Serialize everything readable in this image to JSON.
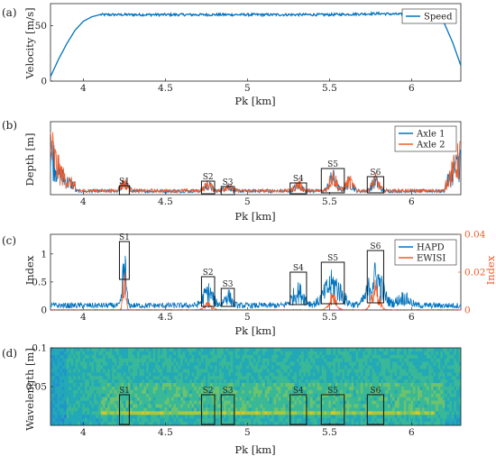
{
  "chart_data": [
    {
      "panel": "(a)",
      "type": "line",
      "ylabel": "Velocity [m/s]",
      "xlabel": "Pk [km]",
      "xlim": [
        3.8,
        6.3
      ],
      "ylim": [
        0,
        70
      ],
      "xticks": [
        "4",
        "4.5",
        "5",
        "5.5",
        "6"
      ],
      "yticks": [
        "0",
        "50"
      ],
      "legend_position": "top-right",
      "series": [
        {
          "name": "Speed",
          "color": "#0072BD",
          "x": [
            3.8,
            3.85,
            3.9,
            3.95,
            4.0,
            4.05,
            4.1,
            4.2,
            4.5,
            5.0,
            5.5,
            5.8,
            6.0,
            6.1,
            6.2,
            6.25,
            6.3
          ],
          "y": [
            4,
            20,
            34,
            46,
            54,
            58,
            60,
            60,
            60,
            60,
            60,
            61,
            60,
            58,
            52,
            35,
            14
          ]
        }
      ],
      "annotations": [],
      "grid": false
    },
    {
      "panel": "(b)",
      "type": "line",
      "ylabel": "Depth [m]",
      "xlabel": "Pk [km]",
      "xlim": [
        3.8,
        6.3
      ],
      "ylim": [
        0,
        0.0065
      ],
      "xticks": [
        "4",
        "4.5",
        "5",
        "5.5",
        "6"
      ],
      "yticks": [],
      "legend_position": "top-right",
      "series": [
        {
          "name": "Axle 1",
          "color": "#0072BD"
        },
        {
          "name": "Axle 2",
          "color": "#F05A28"
        }
      ],
      "annotations": [
        "S1",
        "S2",
        "S3",
        "S4",
        "S5",
        "S6"
      ],
      "grid": false
    },
    {
      "panel": "(c)",
      "type": "line",
      "ylabel": "Index",
      "ylabel_right": "Index",
      "xlabel": "Pk [km]",
      "xlim": [
        3.8,
        6.3
      ],
      "ylim": [
        0,
        1.35
      ],
      "ylim_right": [
        0,
        0.04
      ],
      "xticks": [
        "4",
        "4.5",
        "5",
        "5.5",
        "6"
      ],
      "yticks": [
        "0",
        "0.5",
        "1"
      ],
      "yticks_right": [
        "0",
        "0.02",
        "0.04"
      ],
      "legend_position": "top-right",
      "series": [
        {
          "name": "HAPD",
          "color": "#0072BD"
        },
        {
          "name": "EWISI",
          "color": "#F05A28"
        }
      ],
      "annotations": [
        "S1",
        "S2",
        "S3",
        "S4",
        "S5",
        "S6"
      ],
      "grid": false
    },
    {
      "panel": "(d)",
      "type": "heatmap",
      "ylabel": "Wavelength [m]",
      "xlabel": "Pk [km]",
      "xlim": [
        3.8,
        6.3
      ],
      "ylim": [
        0,
        0.1
      ],
      "xticks": [
        "4",
        "4.5",
        "5",
        "5.5",
        "6"
      ],
      "yticks": [
        "0.05",
        "0.1"
      ],
      "annotations": [
        "S1",
        "S2",
        "S3",
        "S4",
        "S5",
        "S6"
      ],
      "grid": false
    }
  ],
  "sections": [
    {
      "label": "S1",
      "pk_start": 4.22,
      "pk_end": 4.28
    },
    {
      "label": "S2",
      "pk_start": 4.72,
      "pk_end": 4.8
    },
    {
      "label": "S3",
      "pk_start": 4.84,
      "pk_end": 4.92
    },
    {
      "label": "S4",
      "pk_start": 5.26,
      "pk_end": 5.36
    },
    {
      "label": "S5",
      "pk_start": 5.45,
      "pk_end": 5.59
    },
    {
      "label": "S6",
      "pk_start": 5.73,
      "pk_end": 5.83
    }
  ],
  "colors": {
    "blue": "#0072BD",
    "orange": "#F05A28",
    "axis": "#262626"
  }
}
